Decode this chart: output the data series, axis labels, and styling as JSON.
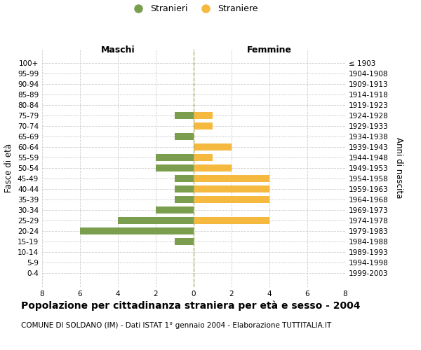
{
  "age_groups": [
    "100+",
    "95-99",
    "90-94",
    "85-89",
    "80-84",
    "75-79",
    "70-74",
    "65-69",
    "60-64",
    "55-59",
    "50-54",
    "45-49",
    "40-44",
    "35-39",
    "30-34",
    "25-29",
    "20-24",
    "15-19",
    "10-14",
    "5-9",
    "0-4"
  ],
  "birth_years": [
    "≤ 1903",
    "1904-1908",
    "1909-1913",
    "1914-1918",
    "1919-1923",
    "1924-1928",
    "1929-1933",
    "1934-1938",
    "1939-1943",
    "1944-1948",
    "1949-1953",
    "1954-1958",
    "1959-1963",
    "1964-1968",
    "1969-1973",
    "1974-1978",
    "1979-1983",
    "1984-1988",
    "1989-1993",
    "1994-1998",
    "1999-2003"
  ],
  "males": [
    0,
    0,
    0,
    0,
    0,
    1,
    0,
    1,
    0,
    2,
    2,
    1,
    1,
    1,
    2,
    4,
    6,
    1,
    0,
    0,
    0
  ],
  "females": [
    0,
    0,
    0,
    0,
    0,
    1,
    1,
    0,
    2,
    1,
    2,
    4,
    4,
    4,
    0,
    4,
    0,
    0,
    0,
    0,
    0
  ],
  "male_color": "#7a9e4e",
  "female_color": "#f5b93f",
  "zero_line_color": "#b0b060",
  "grid_color": "#cccccc",
  "xlim": 8,
  "xticks": [
    -8,
    -6,
    -4,
    -2,
    0,
    2,
    4,
    6,
    8
  ],
  "xtick_labels": [
    "8",
    "6",
    "4",
    "2",
    "0",
    "2",
    "4",
    "6",
    "8"
  ],
  "title": "Popolazione per cittadinanza straniera per età e sesso - 2004",
  "subtitle": "COMUNE DI SOLDANO (IM) - Dati ISTAT 1° gennaio 2004 - Elaborazione TUTTITALIA.IT",
  "ylabel_left": "Fasce di età",
  "ylabel_right": "Anni di nascita",
  "label_maschi": "Maschi",
  "label_femmine": "Femmine",
  "legend_male": "Stranieri",
  "legend_female": "Straniere",
  "bg_color": "#ffffff",
  "bar_height": 0.65,
  "title_fontsize": 10,
  "subtitle_fontsize": 7.5,
  "tick_fontsize": 7.5,
  "axis_label_fontsize": 8.5,
  "header_fontsize": 9,
  "legend_fontsize": 9
}
